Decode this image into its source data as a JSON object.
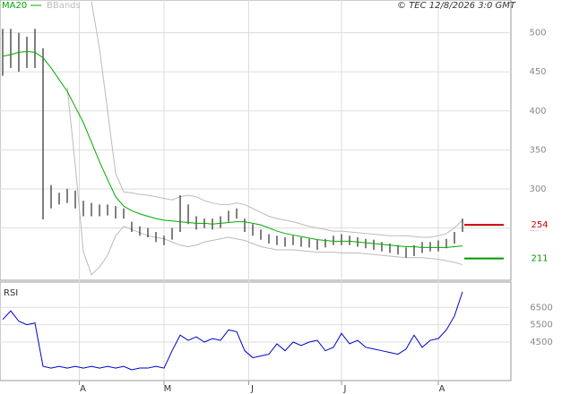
{
  "chart_data": {
    "type": "stock",
    "legend": [
      "MA20",
      "BBands"
    ],
    "source": "© TEC 12/8/2026 3:0 GMT",
    "xlim": [
      0,
      63
    ],
    "xticks": [
      {
        "value": 9.5,
        "label": "A"
      },
      {
        "value": 20,
        "label": "M"
      },
      {
        "value": 30.5,
        "label": "J"
      },
      {
        "value": 42,
        "label": "J"
      },
      {
        "value": 54,
        "label": "A"
      }
    ],
    "ylim": [
      183,
      542
    ],
    "yticks": [
      250,
      300,
      350,
      400,
      450,
      500
    ],
    "grid": true,
    "bar_color": "#000000",
    "high": [
      505,
      505,
      500,
      495,
      505,
      480,
      305,
      295,
      300,
      298,
      285,
      282,
      280,
      280,
      278,
      275,
      258,
      252,
      250,
      245,
      240,
      250,
      292,
      280,
      265,
      262,
      262,
      265,
      272,
      275,
      262,
      255,
      248,
      242,
      240,
      238,
      240,
      238,
      236,
      235,
      236,
      240,
      242,
      240,
      238,
      236,
      235,
      232,
      230,
      228,
      225,
      228,
      232,
      232,
      234,
      236,
      245,
      262
    ],
    "low": [
      445,
      455,
      450,
      455,
      455,
      261,
      275,
      280,
      282,
      275,
      265,
      265,
      265,
      266,
      262,
      262,
      245,
      240,
      238,
      232,
      228,
      235,
      245,
      255,
      248,
      250,
      248,
      250,
      258,
      262,
      245,
      240,
      235,
      230,
      228,
      226,
      228,
      226,
      225,
      222,
      225,
      228,
      228,
      228,
      226,
      224,
      222,
      220,
      218,
      216,
      212,
      214,
      218,
      220,
      220,
      224,
      230,
      245
    ],
    "ma": {
      "name": "MA20",
      "color": "#00aa00",
      "values": [
        470,
        472,
        475,
        476,
        475,
        468,
        455,
        440,
        425,
        405,
        385,
        360,
        335,
        312,
        290,
        278,
        272,
        268,
        265,
        262,
        260,
        259,
        258,
        257,
        256,
        256,
        255,
        256,
        257,
        258,
        258,
        256,
        254,
        250,
        246,
        243,
        241,
        239,
        237,
        235,
        234,
        233,
        233,
        233,
        232,
        231,
        230,
        229,
        228,
        227,
        226,
        226,
        225,
        225,
        225,
        225,
        226,
        227
      ]
    },
    "bands": {
      "name": "BBands",
      "color": "#bbbbbb",
      "upper": [
        null,
        null,
        null,
        null,
        null,
        null,
        null,
        null,
        null,
        null,
        null,
        540,
        480,
        400,
        320,
        296,
        295,
        293,
        292,
        290,
        288,
        286,
        290,
        292,
        290,
        285,
        282,
        280,
        280,
        282,
        280,
        275,
        270,
        265,
        262,
        260,
        258,
        255,
        252,
        250,
        248,
        246,
        246,
        245,
        244,
        243,
        242,
        241,
        240,
        240,
        240,
        239,
        238,
        238,
        240,
        243,
        250,
        260
      ],
      "lower": [
        null,
        null,
        null,
        null,
        null,
        null,
        null,
        null,
        430,
        330,
        220,
        190,
        200,
        215,
        240,
        252,
        248,
        244,
        240,
        238,
        236,
        232,
        228,
        226,
        228,
        232,
        234,
        236,
        238,
        236,
        234,
        230,
        226,
        224,
        222,
        222,
        222,
        221,
        220,
        219,
        219,
        219,
        218,
        218,
        218,
        217,
        216,
        215,
        214,
        213,
        212,
        212,
        212,
        211,
        210,
        208,
        206,
        203
      ]
    },
    "levels": [
      {
        "value": 254,
        "color": "#cc0000"
      },
      {
        "value": 211,
        "color": "#009900"
      }
    ],
    "rsi": {
      "name": "RSI",
      "color": "#0000cc",
      "ylim": [
        22.8,
        79.6
      ],
      "yticks": [
        {
          "value": 65,
          "label": "6500"
        },
        {
          "value": 55,
          "label": "5500"
        },
        {
          "value": 45,
          "label": "4500"
        }
      ],
      "values": [
        58,
        63,
        57,
        55,
        56,
        31,
        30,
        31,
        30,
        31,
        30,
        31,
        30,
        31,
        30,
        31,
        29,
        30,
        30,
        31,
        30,
        40,
        49,
        46,
        48,
        45,
        47,
        46,
        52,
        51,
        40,
        36,
        37,
        38,
        44,
        40,
        45,
        43,
        45,
        46,
        40,
        42,
        50,
        44,
        46,
        42,
        41,
        40,
        39,
        38,
        41,
        49,
        42,
        46,
        47,
        52,
        60,
        74
      ]
    }
  }
}
